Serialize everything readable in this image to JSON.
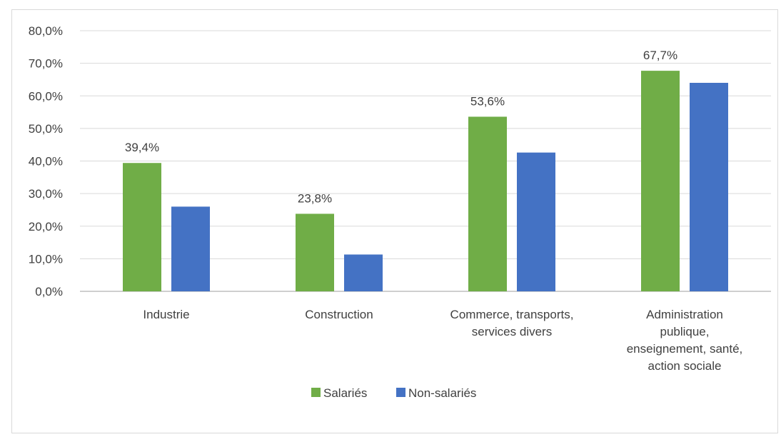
{
  "chart_data": {
    "type": "bar",
    "categories": [
      [
        "Industrie"
      ],
      [
        "Construction"
      ],
      [
        "Commerce, transports,",
        "services divers"
      ],
      [
        "Administration",
        "publique,",
        "enseignement, santé,",
        "action sociale"
      ]
    ],
    "series": [
      {
        "name": "Salariés",
        "color": "#70ad47",
        "values": [
          39.4,
          23.8,
          53.6,
          67.7
        ],
        "labels": [
          "39,4%",
          "23,8%",
          "53,6%",
          "67,7%"
        ]
      },
      {
        "name": "Non-salariés",
        "color": "#4472c4",
        "values": [
          26.0,
          11.3,
          42.6,
          64.0
        ],
        "labels": [
          "",
          "",
          "",
          ""
        ]
      }
    ],
    "ylim": [
      0,
      80
    ],
    "ytick_step": 10,
    "ytick_labels": [
      "0,0%",
      "10,0%",
      "20,0%",
      "30,0%",
      "40,0%",
      "50,0%",
      "60,0%",
      "70,0%",
      "80,0%"
    ],
    "grid": true,
    "legend_position": "bottom"
  }
}
